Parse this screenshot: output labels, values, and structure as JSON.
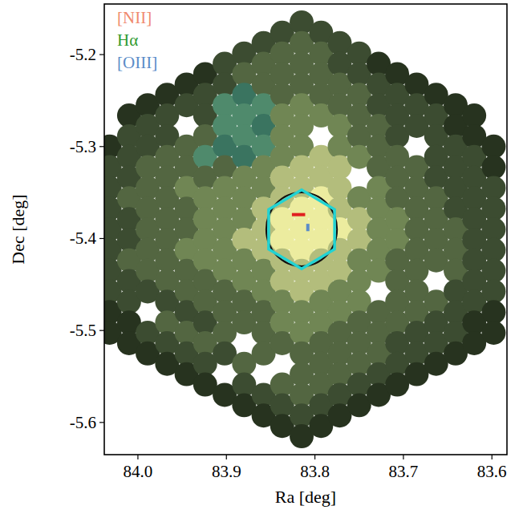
{
  "chart_data": {
    "type": "ifu_map",
    "x_label": "Ra [deg]",
    "y_label": "Dec [deg]",
    "xlim": [
      84.038,
      83.583
    ],
    "ylim": [
      -5.635,
      -5.145
    ],
    "xticks": [
      {
        "value": 84.0,
        "label": "84.0"
      },
      83.9,
      83.8,
      83.7,
      83.6
    ],
    "yticks": [
      -5.2,
      -5.3,
      -5.4,
      -5.5,
      -5.6
    ],
    "legend": "upper left",
    "series": [
      {
        "name": "[NII]",
        "color": "#f08a6e"
      },
      {
        "name": "Hα",
        "color": "#2f9a2f"
      },
      {
        "name": "[OIII]",
        "color": "#5b8cc8"
      }
    ],
    "palette": [
      "#27331f",
      "#3c4c31",
      "#536641",
      "#708654",
      "#b3bd7c",
      "#ecec9f",
      "#4f8a6c",
      "#3a7460"
    ],
    "fibers": {
      "dec_center": -5.39,
      "dec_step": 0.0225,
      "columns": [
        {
          "ra": 84.032,
          "cells": [
            null,
            0,
            1,
            1,
            1,
            1,
            1,
            1,
            1,
            0,
            0
          ]
        },
        {
          "ra": 84.01,
          "cells": [
            0,
            1,
            1,
            1,
            2,
            1,
            1,
            2,
            1,
            1,
            0,
            0
          ]
        },
        {
          "ra": 83.989,
          "cells": [
            0,
            1,
            1,
            2,
            2,
            2,
            2,
            2,
            2,
            1,
            null,
            1,
            0
          ]
        },
        {
          "ra": 83.967,
          "cells": [
            0,
            1,
            1,
            2,
            2,
            2,
            2,
            2,
            2,
            2,
            1,
            2,
            1,
            0
          ]
        },
        {
          "ra": 83.945,
          "cells": [
            0,
            1,
            null,
            2,
            2,
            3,
            2,
            2,
            3,
            2,
            2,
            1,
            2,
            1,
            0
          ]
        },
        {
          "ra": 83.924,
          "cells": [
            0,
            1,
            1,
            2,
            6,
            2,
            3,
            3,
            3,
            3,
            2,
            2,
            1,
            2,
            1,
            0
          ]
        },
        {
          "ra": 83.902,
          "cells": [
            1,
            1,
            6,
            6,
            7,
            2,
            3,
            3,
            3,
            3,
            3,
            2,
            2,
            2,
            1,
            null,
            0
          ]
        },
        {
          "ra": 83.88,
          "cells": [
            1,
            2,
            7,
            6,
            6,
            7,
            3,
            3,
            3,
            4,
            3,
            3,
            2,
            2,
            null,
            2,
            1,
            0
          ]
        },
        {
          "ra": 83.858,
          "cells": [
            1,
            2,
            2,
            6,
            7,
            6,
            3,
            3,
            4,
            4,
            4,
            3,
            3,
            2,
            2,
            2,
            null,
            1,
            0
          ]
        },
        {
          "ra": 83.837,
          "cells": [
            1,
            2,
            2,
            2,
            3,
            3,
            3,
            4,
            4,
            5,
            5,
            4,
            4,
            3,
            3,
            2,
            null,
            2,
            1,
            0
          ]
        },
        {
          "ra": 83.815,
          "cells": [
            1,
            2,
            2,
            2,
            3,
            3,
            3,
            4,
            4,
            5,
            5,
            5,
            4,
            4,
            3,
            3,
            2,
            2,
            2,
            1,
            0
          ]
        },
        {
          "ra": 83.793,
          "cells": [
            1,
            2,
            2,
            2,
            3,
            null,
            4,
            4,
            5,
            5,
            5,
            4,
            4,
            3,
            3,
            2,
            2,
            2,
            1,
            0
          ]
        },
        {
          "ra": 83.772,
          "cells": [
            1,
            1,
            2,
            2,
            3,
            3,
            4,
            4,
            4,
            5,
            4,
            4,
            3,
            3,
            2,
            2,
            2,
            1,
            0
          ]
        },
        {
          "ra": 83.75,
          "cells": [
            1,
            1,
            2,
            2,
            2,
            3,
            null,
            3,
            4,
            4,
            3,
            3,
            3,
            2,
            2,
            2,
            1,
            0
          ]
        },
        {
          "ra": 83.728,
          "cells": [
            0,
            1,
            1,
            2,
            2,
            2,
            3,
            3,
            3,
            3,
            3,
            null,
            2,
            2,
            2,
            1,
            0
          ]
        },
        {
          "ra": 83.707,
          "cells": [
            0,
            1,
            1,
            1,
            2,
            2,
            2,
            3,
            3,
            2,
            2,
            2,
            2,
            1,
            1,
            0
          ]
        },
        {
          "ra": 83.685,
          "cells": [
            0,
            1,
            1,
            null,
            2,
            2,
            2,
            2,
            2,
            2,
            2,
            2,
            1,
            1,
            0
          ]
        },
        {
          "ra": 83.663,
          "cells": [
            0,
            1,
            1,
            1,
            1,
            2,
            2,
            2,
            2,
            null,
            2,
            1,
            1,
            0
          ]
        },
        {
          "ra": 83.641,
          "cells": [
            0,
            0,
            1,
            1,
            1,
            1,
            2,
            2,
            2,
            1,
            1,
            1,
            0
          ]
        },
        {
          "ra": 83.62,
          "cells": [
            0,
            0,
            1,
            1,
            1,
            1,
            1,
            1,
            1,
            1,
            0,
            0
          ]
        },
        {
          "ra": 83.598,
          "cells": [
            null,
            0,
            0,
            1,
            1,
            1,
            1,
            1,
            1,
            0,
            0
          ]
        }
      ]
    },
    "annotations": {
      "circle": {
        "ra": 83.815,
        "dec": -5.39,
        "radius": 0.04,
        "color": "#111111"
      },
      "hexagon": {
        "ra": 83.815,
        "dec": -5.39,
        "radius": 0.043,
        "color": "#22d3d3"
      },
      "segments": [
        {
          "ra": [
            83.826,
            83.811
          ],
          "dec": [
            -5.374,
            -5.374
          ],
          "color": "#e02020"
        },
        {
          "ra": [
            83.808,
            83.808
          ],
          "dec": [
            -5.384,
            -5.392
          ],
          "color": "#5b8cc8"
        }
      ]
    }
  }
}
